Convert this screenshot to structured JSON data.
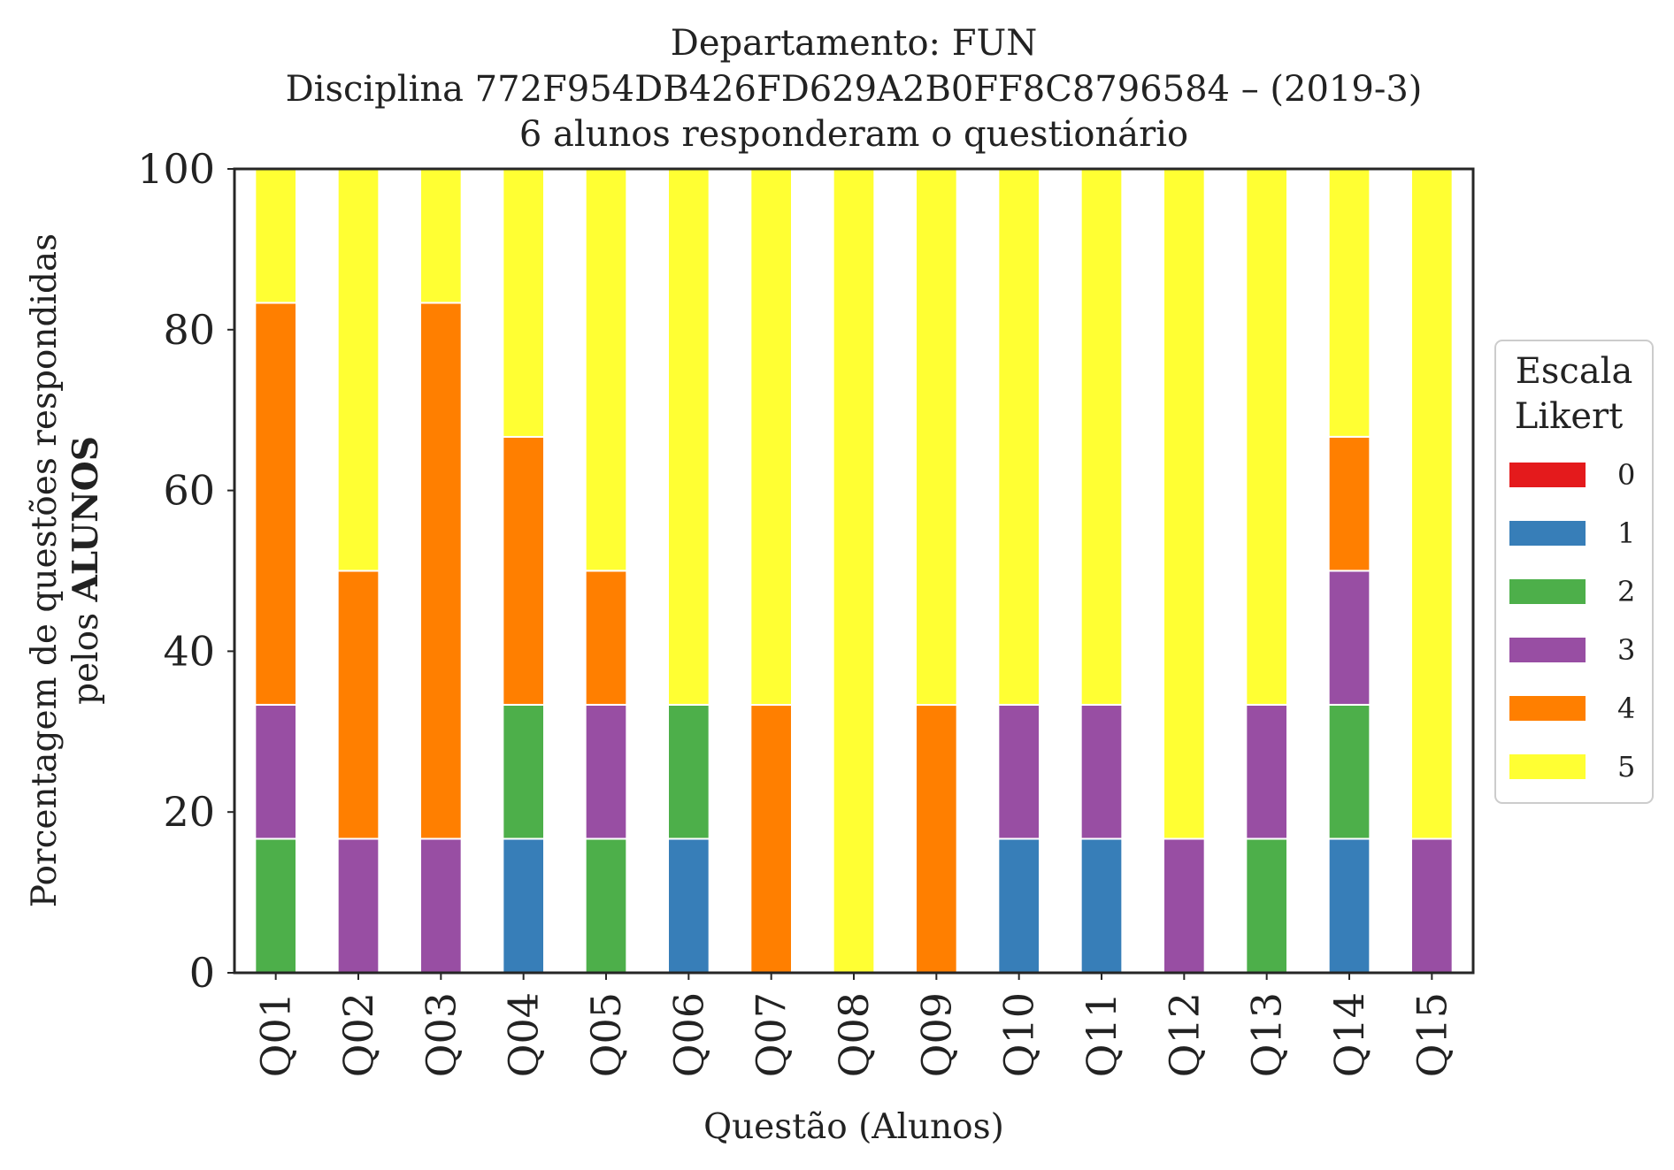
{
  "chart_data": {
    "type": "bar",
    "stacked": true,
    "title_lines": [
      "Departamento: FUN",
      "Disciplina 772F954DB426FD629A2B0FF8C8796584 – (2019-3)",
      "6 alunos responderam o questionário"
    ],
    "xlabel": "Questão (Alunos)",
    "ylabel_line1": "Porcentagem de questões respondidas",
    "ylabel_line2_prefix": "pelos ",
    "ylabel_line2_bold": "ALUNOS",
    "ylim": [
      0,
      100
    ],
    "yticks": [
      "0",
      "20",
      "40",
      "60",
      "80",
      "100"
    ],
    "categories": [
      "Q01",
      "Q02",
      "Q03",
      "Q04",
      "Q05",
      "Q06",
      "Q07",
      "Q08",
      "Q09",
      "Q10",
      "Q11",
      "Q12",
      "Q13",
      "Q14",
      "Q15"
    ],
    "legend": {
      "title_lines": [
        "Escala",
        "Likert"
      ],
      "placement": "right"
    },
    "series": [
      {
        "name": "0",
        "color": "#e41a1c",
        "values": [
          0,
          0,
          0,
          0,
          0,
          0,
          0,
          0,
          0,
          0,
          0,
          0,
          0,
          0,
          0
        ]
      },
      {
        "name": "1",
        "color": "#377eb8",
        "values": [
          0,
          0,
          0,
          16.67,
          0,
          16.67,
          0,
          0,
          0,
          16.67,
          16.67,
          0,
          0,
          16.67,
          0
        ]
      },
      {
        "name": "2",
        "color": "#4daf4a",
        "values": [
          16.67,
          0,
          0,
          16.67,
          16.67,
          16.67,
          0,
          0,
          0,
          0,
          0,
          0,
          16.67,
          16.67,
          0
        ]
      },
      {
        "name": "3",
        "color": "#984ea3",
        "values": [
          16.67,
          16.67,
          16.67,
          0,
          16.67,
          0,
          0,
          0,
          0,
          16.67,
          16.67,
          16.67,
          16.67,
          16.67,
          16.67
        ]
      },
      {
        "name": "4",
        "color": "#ff7f00",
        "values": [
          50,
          33.33,
          66.67,
          33.33,
          16.67,
          0,
          33.33,
          0,
          33.33,
          0,
          0,
          0,
          0,
          16.67,
          0
        ]
      },
      {
        "name": "5",
        "color": "#ffff33",
        "values": [
          16.67,
          50,
          16.67,
          33.33,
          50,
          66.67,
          66.67,
          100,
          66.67,
          66.67,
          66.67,
          83.33,
          66.67,
          33.33,
          83.33
        ]
      }
    ]
  }
}
